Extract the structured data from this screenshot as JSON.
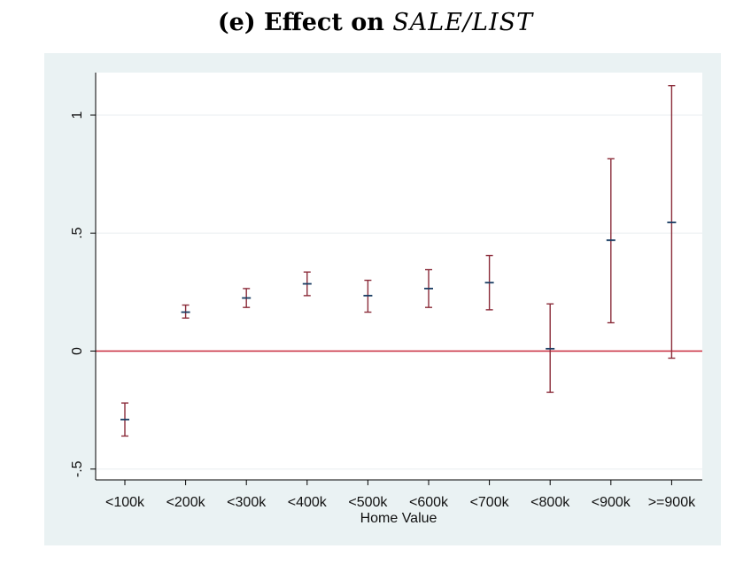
{
  "title": {
    "prefix": "(e) Effect on",
    "variable": "SALE/LIST"
  },
  "colors": {
    "panel_bg": "#eaf2f3",
    "plot_bg": "#ffffff",
    "gridline": "#e8eef0",
    "error_bar": "#8b2c3a",
    "point_marker": "#1a3d63",
    "reference_line": "#c8283a",
    "axis": "#000000"
  },
  "chart_data": {
    "type": "scatter",
    "subtype": "point-estimate-with-confidence-intervals",
    "title": "(e) Effect on SALE/LIST",
    "xlabel": "Home Value",
    "ylabel": "",
    "categories": [
      "<100k",
      "<200k",
      "<300k",
      "<400k",
      "<500k",
      "<600k",
      "<700k",
      "<800k",
      "<900k",
      ">=900k"
    ],
    "estimate": [
      -0.29,
      0.165,
      0.225,
      0.285,
      0.235,
      0.265,
      0.29,
      0.01,
      0.47,
      0.545
    ],
    "ci_lower": [
      -0.36,
      0.14,
      0.185,
      0.235,
      0.165,
      0.185,
      0.175,
      -0.175,
      0.12,
      -0.03
    ],
    "ci_upper": [
      -0.22,
      0.195,
      0.265,
      0.335,
      0.3,
      0.345,
      0.405,
      0.2,
      0.815,
      1.125
    ],
    "ylim": [
      -0.55,
      1.2
    ],
    "yticks": [
      -0.5,
      0,
      0.5,
      1
    ],
    "ytick_labels": [
      "-.5",
      "0",
      ".5",
      "1"
    ],
    "reference_line_y": 0,
    "grid": true,
    "legend": "none"
  }
}
